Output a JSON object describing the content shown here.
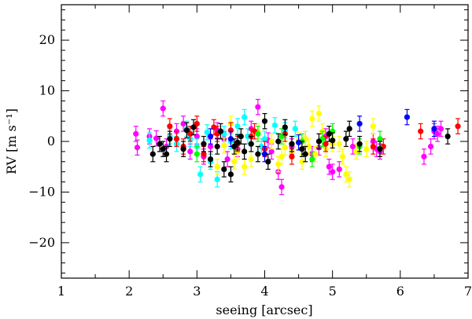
{
  "chart_data": {
    "type": "scatter",
    "title": "",
    "xlabel": "seeing [arcsec]",
    "ylabel": "RV [m s⁻¹]",
    "xlim": [
      1,
      7
    ],
    "ylim": [
      -27,
      27
    ],
    "grid": false,
    "legend": "none",
    "x_ticks": [
      1,
      2,
      3,
      4,
      5,
      6,
      7
    ],
    "x_tick_labels": [
      "1",
      "2",
      "3",
      "4",
      "5",
      "6",
      "7"
    ],
    "y_ticks": [
      20,
      10,
      0,
      -10,
      -20
    ],
    "y_tick_labels": [
      "20",
      "10",
      "0",
      "−10",
      "−20"
    ],
    "error_bar": 1.5,
    "series": [
      {
        "color": "#ff00ff",
        "points": [
          [
            2.1,
            1.5
          ],
          [
            2.12,
            -1.2
          ],
          [
            2.3,
            1.0
          ],
          [
            2.4,
            0.6
          ],
          [
            2.5,
            6.5
          ],
          [
            2.55,
            -1.0
          ],
          [
            2.7,
            2.0
          ],
          [
            2.8,
            3.5
          ],
          [
            2.9,
            -2.0
          ],
          [
            3.0,
            1.0
          ],
          [
            3.1,
            -3.0
          ],
          [
            3.3,
            2.2
          ],
          [
            3.4,
            0.5
          ],
          [
            3.6,
            -1.5
          ],
          [
            3.8,
            2.5
          ],
          [
            3.9,
            6.8
          ],
          [
            4.05,
            0.2
          ],
          [
            4.1,
            -2.0
          ],
          [
            4.2,
            -6.0
          ],
          [
            4.25,
            -9.0
          ],
          [
            4.4,
            -1.0
          ],
          [
            4.6,
            0.5
          ],
          [
            4.8,
            -1.2
          ],
          [
            4.9,
            1.0
          ],
          [
            4.95,
            -5.0
          ],
          [
            5.0,
            -6.0
          ],
          [
            5.1,
            -5.5
          ],
          [
            5.3,
            -1.0
          ],
          [
            5.6,
            0.0
          ],
          [
            5.65,
            -1.5
          ],
          [
            5.7,
            -2.0
          ],
          [
            6.35,
            -3.0
          ],
          [
            6.45,
            -1.0
          ],
          [
            6.5,
            2.0
          ],
          [
            6.55,
            1.5
          ],
          [
            6.6,
            2.5
          ],
          [
            3.2,
            -1.0
          ],
          [
            3.45,
            -3.5
          ],
          [
            4.7,
            -2.5
          ]
        ]
      },
      {
        "color": "#00ffff",
        "points": [
          [
            2.3,
            0.2
          ],
          [
            2.6,
            1.0
          ],
          [
            2.7,
            -0.5
          ],
          [
            2.9,
            0.5
          ],
          [
            3.0,
            -1.0
          ],
          [
            3.05,
            -6.5
          ],
          [
            3.2,
            -4.0
          ],
          [
            3.3,
            -7.5
          ],
          [
            3.4,
            1.5
          ],
          [
            3.5,
            0.0
          ],
          [
            3.7,
            4.8
          ],
          [
            3.75,
            1.0
          ],
          [
            3.95,
            -1.0
          ],
          [
            4.0,
            0.5
          ],
          [
            4.3,
            2.2
          ],
          [
            4.45,
            2.5
          ],
          [
            3.15,
            1.8
          ],
          [
            2.85,
            2.5
          ],
          [
            3.6,
            3.0
          ],
          [
            4.15,
            3.2
          ]
        ]
      },
      {
        "color": "#ffff00",
        "points": [
          [
            3.4,
            -0.8
          ],
          [
            3.5,
            3.5
          ],
          [
            3.6,
            -2.0
          ],
          [
            3.7,
            -5.0
          ],
          [
            3.8,
            -3.5
          ],
          [
            3.9,
            2.0
          ],
          [
            4.1,
            0.0
          ],
          [
            4.2,
            -4.5
          ],
          [
            4.3,
            -1.2
          ],
          [
            4.4,
            -2.0
          ],
          [
            4.5,
            0.2
          ],
          [
            4.6,
            0.5
          ],
          [
            4.65,
            -1.0
          ],
          [
            4.7,
            4.5
          ],
          [
            4.75,
            -2.5
          ],
          [
            4.8,
            5.5
          ],
          [
            4.85,
            2.0
          ],
          [
            4.9,
            -1.5
          ],
          [
            5.0,
            -0.5
          ],
          [
            5.1,
            -0.5
          ],
          [
            5.2,
            -6.5
          ],
          [
            5.25,
            -7.5
          ],
          [
            5.35,
            -2.0
          ],
          [
            5.5,
            -1.5
          ],
          [
            5.6,
            3.0
          ],
          [
            3.3,
            -5.0
          ],
          [
            3.55,
            -4.0
          ],
          [
            4.25,
            -3.0
          ],
          [
            4.55,
            -4.0
          ],
          [
            5.15,
            -3.0
          ]
        ]
      },
      {
        "color": "#ff0000",
        "points": [
          [
            2.7,
            0.5
          ],
          [
            2.8,
            -1.0
          ],
          [
            2.9,
            1.5
          ],
          [
            3.0,
            3.5
          ],
          [
            3.1,
            -2.5
          ],
          [
            3.3,
            1.5
          ],
          [
            3.5,
            2.2
          ],
          [
            3.6,
            -0.5
          ],
          [
            3.8,
            1.0
          ],
          [
            3.85,
            2.0
          ],
          [
            4.0,
            -1.5
          ],
          [
            4.3,
            1.5
          ],
          [
            4.4,
            -3.0
          ],
          [
            4.9,
            -0.5
          ],
          [
            5.6,
            -1.0
          ],
          [
            5.75,
            -1.0
          ],
          [
            6.3,
            2.0
          ],
          [
            6.85,
            3.0
          ],
          [
            2.6,
            3.0
          ],
          [
            3.25,
            2.8
          ]
        ]
      },
      {
        "color": "#00ff00",
        "points": [
          [
            3.0,
            -2.5
          ],
          [
            4.4,
            -0.5
          ],
          [
            4.55,
            0.0
          ],
          [
            4.7,
            -3.5
          ],
          [
            4.85,
            0.5
          ],
          [
            5.0,
            2.0
          ],
          [
            5.7,
            0.5
          ],
          [
            3.9,
            1.5
          ],
          [
            4.25,
            1.0
          ],
          [
            5.4,
            -1.0
          ]
        ]
      },
      {
        "color": "#0000ff",
        "points": [
          [
            3.5,
            0.5
          ],
          [
            4.5,
            -0.2
          ],
          [
            5.4,
            3.5
          ],
          [
            6.1,
            4.8
          ],
          [
            6.5,
            2.5
          ],
          [
            3.2,
            1.0
          ],
          [
            4.0,
            -2.5
          ]
        ]
      },
      {
        "color": "#000000",
        "points": [
          [
            2.35,
            -2.5
          ],
          [
            2.5,
            -1.5
          ],
          [
            2.55,
            -2.5
          ],
          [
            2.6,
            0.5
          ],
          [
            2.8,
            -1.5
          ],
          [
            2.85,
            2.2
          ],
          [
            2.95,
            2.8
          ],
          [
            3.1,
            -0.5
          ],
          [
            3.2,
            -3.5
          ],
          [
            3.3,
            -1.0
          ],
          [
            3.35,
            2.0
          ],
          [
            3.4,
            -5.5
          ],
          [
            3.5,
            -6.5
          ],
          [
            3.55,
            -1.0
          ],
          [
            3.6,
            -0.2
          ],
          [
            3.7,
            -2.0
          ],
          [
            3.8,
            -0.5
          ],
          [
            3.9,
            -2.5
          ],
          [
            4.0,
            4.0
          ],
          [
            4.05,
            -4.0
          ],
          [
            4.2,
            0.0
          ],
          [
            4.3,
            2.8
          ],
          [
            4.4,
            -0.5
          ],
          [
            4.55,
            -1.5
          ],
          [
            4.6,
            -2.5
          ],
          [
            4.8,
            0.0
          ],
          [
            4.95,
            1.5
          ],
          [
            5.0,
            0.2
          ],
          [
            5.2,
            0.5
          ],
          [
            5.25,
            2.5
          ],
          [
            5.4,
            -0.5
          ],
          [
            5.7,
            -1.5
          ],
          [
            6.7,
            1.0
          ],
          [
            2.45,
            -0.5
          ],
          [
            3.65,
            1.0
          ]
        ]
      }
    ]
  }
}
